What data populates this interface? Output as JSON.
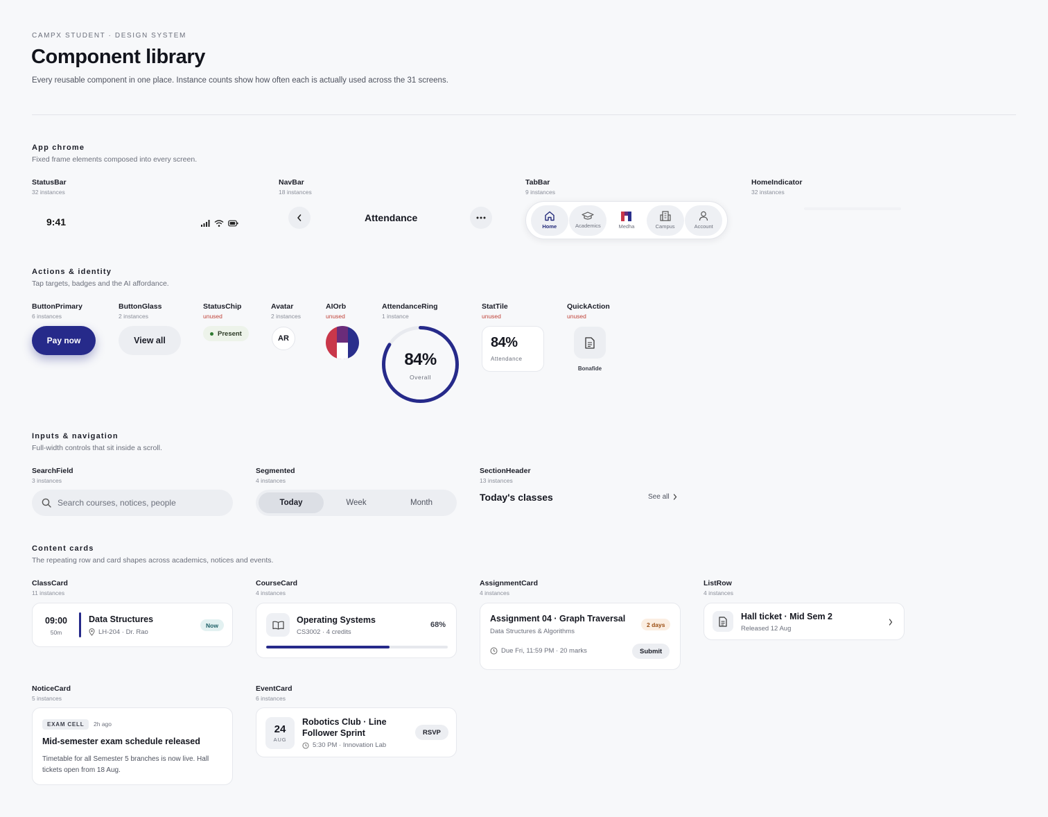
{
  "header": {
    "eyebrow": "CAMPX STUDENT · DESIGN SYSTEM",
    "title": "Component library",
    "lede": "Every reusable component in one place. Instance counts show how often each is actually used across the 31 screens."
  },
  "sections": {
    "chrome": {
      "title": "App chrome",
      "subtitle": "Fixed frame elements composed into every screen."
    },
    "actions": {
      "title": "Actions & identity",
      "subtitle": "Tap targets, badges and the AI affordance."
    },
    "inputs": {
      "title": "Inputs & navigation",
      "subtitle": "Full-width controls that sit inside a scroll."
    },
    "content": {
      "title": "Content cards",
      "subtitle": "The repeating row and card shapes across academics, notices and events."
    }
  },
  "components": {
    "statusbar": {
      "name": "StatusBar",
      "count": "32 instances",
      "time": "9:41"
    },
    "navbar": {
      "name": "NavBar",
      "count": "18 instances",
      "title": "Attendance"
    },
    "tabbar": {
      "name": "TabBar",
      "count": "9 instances",
      "tabs": [
        {
          "label": "Home",
          "icon": "home-icon"
        },
        {
          "label": "Academics",
          "icon": "graduation-cap-icon"
        },
        {
          "label": "Medha",
          "icon": "medha-logo-icon"
        },
        {
          "label": "Campus",
          "icon": "building-icon"
        },
        {
          "label": "Account",
          "icon": "user-icon"
        }
      ]
    },
    "homeindicator": {
      "name": "HomeIndicator",
      "count": "32 instances"
    },
    "buttonprimary": {
      "name": "ButtonPrimary",
      "count": "6 instances",
      "label": "Pay now"
    },
    "buttonglass": {
      "name": "ButtonGlass",
      "count": "2 instances",
      "label": "View all"
    },
    "statuschip": {
      "name": "StatusChip",
      "count": "unused",
      "label": "Present"
    },
    "avatar": {
      "name": "Avatar",
      "count": "2 instances",
      "initials": "AR"
    },
    "aiorb": {
      "name": "AIOrb",
      "count": "unused"
    },
    "attendancering": {
      "name": "AttendanceRing",
      "count": "1 instance",
      "value": "84%",
      "label": "Overall",
      "fraction": 0.84
    },
    "stattile": {
      "name": "StatTile",
      "count": "unused",
      "value": "84%",
      "label": "Attendance"
    },
    "quickaction": {
      "name": "QuickAction",
      "count": "unused",
      "label": "Bonafide"
    },
    "searchfield": {
      "name": "SearchField",
      "count": "3 instances",
      "placeholder": "Search courses, notices, people"
    },
    "segmented": {
      "name": "Segmented",
      "count": "4 instances",
      "options": [
        "Today",
        "Week",
        "Month"
      ],
      "selected": "Today"
    },
    "sectionheader": {
      "name": "SectionHeader",
      "count": "13 instances",
      "title": "Today's classes",
      "link": "See all"
    },
    "classcard": {
      "name": "ClassCard",
      "count": "11 instances",
      "time": "09:00",
      "duration": "50m",
      "title": "Data Structures",
      "meta": "LH-204 · Dr. Rao",
      "badge": "Now"
    },
    "coursecard": {
      "name": "CourseCard",
      "count": "4 instances",
      "title": "Operating Systems",
      "meta": "CS3002 · 4 credits",
      "progress_label": "68%",
      "progress": 0.68
    },
    "assignmentcard": {
      "name": "AssignmentCard",
      "count": "4 instances",
      "title": "Assignment 04 · Graph Traversal",
      "subtitle": "Data Structures & Algorithms",
      "badge": "2 days",
      "due": "Due Fri, 11:59 PM · 20 marks",
      "action": "Submit"
    },
    "listrow": {
      "name": "ListRow",
      "count": "4 instances",
      "title": "Hall ticket · Mid Sem 2",
      "subtitle": "Released 12 Aug"
    },
    "noticecard": {
      "name": "NoticeCard",
      "count": "5 instances",
      "tag": "EXAM CELL",
      "time": "2h ago",
      "title": "Mid-semester exam schedule released",
      "body": "Timetable for all Semester 5 branches is now live. Hall tickets open from 18 Aug."
    },
    "eventcard": {
      "name": "EventCard",
      "count": "6 instances",
      "day": "24",
      "month": "AUG",
      "title": "Robotics Club · Line Follower Sprint",
      "meta": "5:30 PM · Innovation Lab",
      "action": "RSVP"
    }
  },
  "colors": {
    "primary": "#262a8a",
    "accent_red": "#c0443a",
    "background": "#f7f8fa"
  }
}
